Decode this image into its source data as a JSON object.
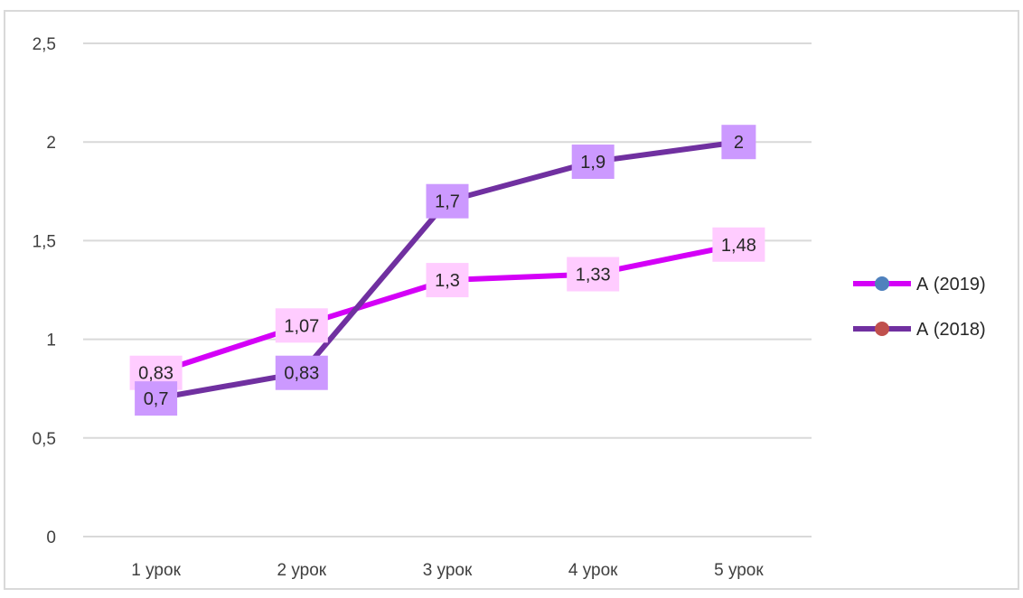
{
  "chart_data": {
    "type": "line",
    "title": "",
    "xlabel": "",
    "ylabel": "",
    "categories": [
      "1 урок",
      "2 урок",
      "3 урок",
      "4 урок",
      "5 урок"
    ],
    "ylim": [
      0,
      2.5
    ],
    "y_ticks": [
      "0",
      "0,5",
      "1",
      "1,5",
      "2",
      "2,5"
    ],
    "y_tick_values": [
      0,
      0.5,
      1,
      1.5,
      2,
      2.5
    ],
    "grid": true,
    "legend_position": "right",
    "series": [
      {
        "name": "А (2019)",
        "values": [
          0.83,
          1.07,
          1.3,
          1.33,
          1.48
        ],
        "labels": [
          "0,83",
          "1,07",
          "1,3",
          "1,33",
          "1,48"
        ],
        "line_color": "#d400f7",
        "label_bg": "#ffccff",
        "marker_color": "#4f81bd"
      },
      {
        "name": "А (2018)",
        "values": [
          0.7,
          0.83,
          1.7,
          1.9,
          2
        ],
        "labels": [
          "0,7",
          "0,83",
          "1,7",
          "1,9",
          "2"
        ],
        "line_color": "#7030a0",
        "label_bg": "#cc99ff",
        "marker_color": "#c0504d"
      }
    ]
  }
}
